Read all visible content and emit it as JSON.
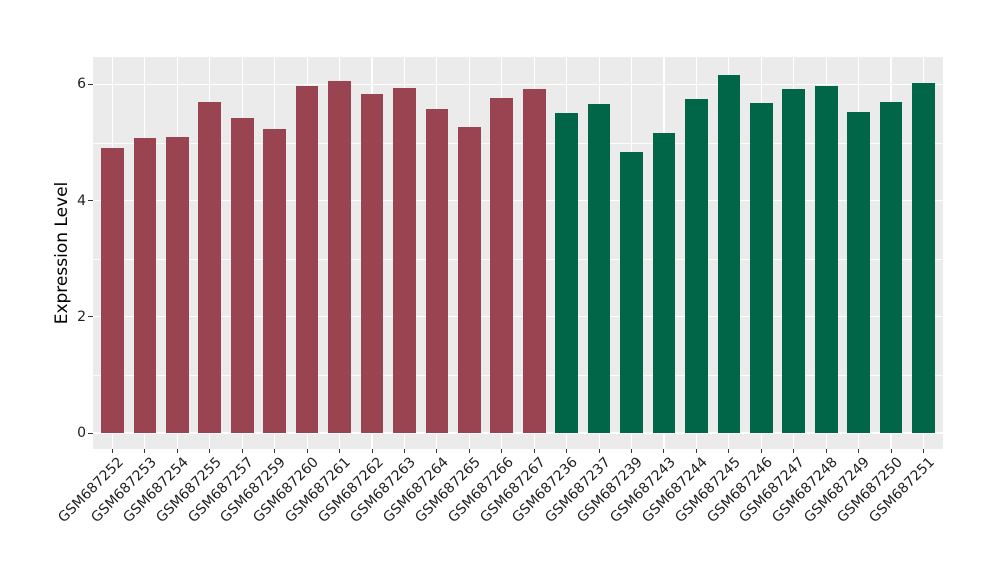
{
  "chart_data": {
    "type": "bar",
    "title": "",
    "xlabel": "",
    "ylabel": "Expression Level",
    "legend": "none",
    "grid": true,
    "panel_bg": "#EBEBEB",
    "gridline_color": "#FFFFFF",
    "ylim": [
      0,
      6.5
    ],
    "yticks": [
      0,
      2,
      4,
      6
    ],
    "yticks_minor": [
      1,
      3,
      5
    ],
    "group_colors": {
      "maroon": "#9A4452",
      "green": "#006647"
    },
    "bars": [
      {
        "label": "GSM687252",
        "value": 4.9,
        "group": "maroon"
      },
      {
        "label": "GSM687253",
        "value": 5.07,
        "group": "maroon"
      },
      {
        "label": "GSM687254",
        "value": 5.1,
        "group": "maroon"
      },
      {
        "label": "GSM687255",
        "value": 5.69,
        "group": "maroon"
      },
      {
        "label": "GSM687257",
        "value": 5.42,
        "group": "maroon"
      },
      {
        "label": "GSM687259",
        "value": 5.23,
        "group": "maroon"
      },
      {
        "label": "GSM687260",
        "value": 5.97,
        "group": "maroon"
      },
      {
        "label": "GSM687261",
        "value": 6.05,
        "group": "maroon"
      },
      {
        "label": "GSM687262",
        "value": 5.83,
        "group": "maroon"
      },
      {
        "label": "GSM687263",
        "value": 5.93,
        "group": "maroon"
      },
      {
        "label": "GSM687264",
        "value": 5.58,
        "group": "maroon"
      },
      {
        "label": "GSM687265",
        "value": 5.27,
        "group": "maroon"
      },
      {
        "label": "GSM687266",
        "value": 5.76,
        "group": "maroon"
      },
      {
        "label": "GSM687267",
        "value": 5.92,
        "group": "maroon"
      },
      {
        "label": "GSM687236",
        "value": 5.5,
        "group": "green"
      },
      {
        "label": "GSM687237",
        "value": 5.67,
        "group": "green"
      },
      {
        "label": "GSM687239",
        "value": 4.84,
        "group": "green"
      },
      {
        "label": "GSM687243",
        "value": 5.16,
        "group": "green"
      },
      {
        "label": "GSM687244",
        "value": 5.75,
        "group": "green"
      },
      {
        "label": "GSM687245",
        "value": 6.16,
        "group": "green"
      },
      {
        "label": "GSM687246",
        "value": 5.68,
        "group": "green"
      },
      {
        "label": "GSM687247",
        "value": 5.92,
        "group": "green"
      },
      {
        "label": "GSM687248",
        "value": 5.97,
        "group": "green"
      },
      {
        "label": "GSM687249",
        "value": 5.52,
        "group": "green"
      },
      {
        "label": "GSM687250",
        "value": 5.69,
        "group": "green"
      },
      {
        "label": "GSM687251",
        "value": 6.02,
        "group": "green"
      }
    ]
  }
}
